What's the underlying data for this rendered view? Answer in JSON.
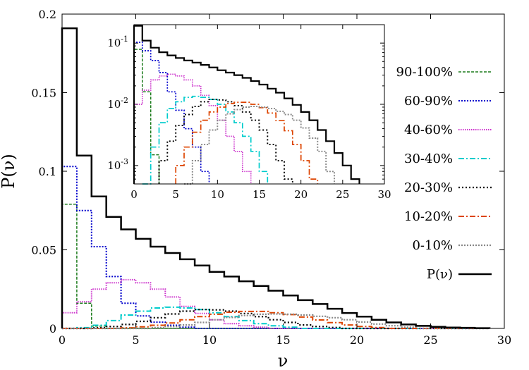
{
  "chart_data": {
    "type": "line",
    "title": "",
    "xlabel": "ν",
    "ylabel": "P(ν)",
    "xlim": [
      0,
      30
    ],
    "ylim": [
      0,
      0.2
    ],
    "x_ticks": [
      0,
      5,
      10,
      15,
      20,
      25,
      30
    ],
    "y_ticks": [
      0,
      0.05,
      0.1,
      0.15,
      0.2
    ],
    "y_tick_labels": [
      "0",
      "0.05",
      "0.1",
      "0.15",
      "0.2"
    ],
    "grid": false,
    "legend_position": "right",
    "step_style": "histogram",
    "bins": [
      0.5,
      1.5,
      2.5,
      3.5,
      4.5,
      5.5,
      6.5,
      7.5,
      8.5,
      9.5,
      10.5,
      11.5,
      12.5,
      13.5,
      14.5,
      15.5,
      16.5,
      17.5,
      18.5,
      19.5,
      20.5,
      21.5,
      22.5,
      23.5,
      24.5,
      25.5,
      26.5,
      27.5,
      28.5
    ],
    "series": [
      {
        "name": "90-100%",
        "color": "#1a7a1a",
        "dash": "4,2",
        "width": 1.5,
        "values": [
          0.079,
          0.016,
          0.0015,
          0,
          0,
          0,
          0,
          0,
          0,
          0,
          0,
          0,
          0,
          0,
          0,
          0,
          0,
          0,
          0,
          0,
          0,
          0,
          0,
          0,
          0,
          0,
          0,
          0,
          0
        ]
      },
      {
        "name": "60-90%",
        "color": "#0000cc",
        "dash": "2,2",
        "width": 2,
        "values": [
          0.103,
          0.075,
          0.052,
          0.033,
          0.016,
          0.008,
          0.004,
          0.002,
          0.0008,
          0,
          0,
          0,
          0,
          0,
          0,
          0,
          0,
          0,
          0,
          0,
          0,
          0,
          0,
          0,
          0,
          0,
          0,
          0,
          0
        ]
      },
      {
        "name": "40-60%",
        "color": "#cc33cc",
        "dash": "1.5,1.5",
        "width": 2,
        "values": [
          0.01,
          0.017,
          0.025,
          0.029,
          0.031,
          0.029,
          0.025,
          0.02,
          0.014,
          0.0095,
          0.0055,
          0.003,
          0.0017,
          0.0008,
          0,
          0,
          0,
          0,
          0,
          0,
          0,
          0,
          0,
          0,
          0,
          0,
          0,
          0,
          0
        ]
      },
      {
        "name": "30-40%",
        "color": "#00cccc",
        "dash": "8,3,2,3",
        "width": 2,
        "values": [
          0,
          0.0005,
          0.002,
          0.005,
          0.0085,
          0.011,
          0.013,
          0.0135,
          0.013,
          0.012,
          0.01,
          0.0075,
          0.005,
          0.003,
          0.0017,
          0.0008,
          0,
          0,
          0,
          0,
          0,
          0,
          0,
          0,
          0,
          0,
          0,
          0,
          0
        ]
      },
      {
        "name": "20-30%",
        "color": "#000000",
        "dash": "2,3",
        "width": 2.2,
        "values": [
          0,
          0,
          0.0004,
          0.0012,
          0.0025,
          0.0045,
          0.0068,
          0.0092,
          0.011,
          0.012,
          0.0118,
          0.011,
          0.0095,
          0.0075,
          0.0055,
          0.0038,
          0.0022,
          0.0012,
          0.0006,
          0,
          0,
          0,
          0,
          0,
          0,
          0,
          0,
          0,
          0
        ]
      },
      {
        "name": "10-20%",
        "color": "#dd4400",
        "dash": "8,3,2,3",
        "width": 2,
        "values": [
          0,
          0,
          0,
          0,
          0.0004,
          0.001,
          0.002,
          0.0035,
          0.0055,
          0.0075,
          0.009,
          0.0103,
          0.0108,
          0.0108,
          0.01,
          0.0088,
          0.0072,
          0.0054,
          0.0037,
          0.0022,
          0.0012,
          0.0006,
          0,
          0,
          0,
          0,
          0,
          0,
          0
        ]
      },
      {
        "name": "0-10%",
        "color": "#888888",
        "dash": "2,2",
        "width": 2.2,
        "values": [
          0,
          0,
          0,
          0,
          0,
          0,
          0.0005,
          0.0012,
          0.0022,
          0.0038,
          0.0055,
          0.007,
          0.0082,
          0.009,
          0.0092,
          0.009,
          0.0085,
          0.0077,
          0.0068,
          0.0055,
          0.0041,
          0.0028,
          0.0017,
          0.0008,
          0,
          0,
          0,
          0,
          0
        ]
      },
      {
        "name": "P(ν)",
        "color": "#000000",
        "dash": "",
        "width": 2.5,
        "values": [
          0.191,
          0.11,
          0.084,
          0.071,
          0.063,
          0.057,
          0.052,
          0.048,
          0.044,
          0.04,
          0.036,
          0.033,
          0.03,
          0.027,
          0.024,
          0.021,
          0.018,
          0.0155,
          0.0125,
          0.0098,
          0.0075,
          0.0055,
          0.0038,
          0.0025,
          0.0016,
          0.001,
          0.0006,
          0.0004,
          0.0002
        ]
      }
    ],
    "inset": {
      "type": "line",
      "yscale": "log",
      "xlim": [
        0,
        30
      ],
      "ylim": [
        0.0005,
        0.2
      ],
      "x_ticks": [
        0,
        5,
        10,
        15,
        20,
        25,
        30
      ],
      "y_ticks": [
        0.001,
        0.01,
        0.1
      ],
      "y_tick_labels": [
        "10-3",
        "10-2",
        "10-1"
      ]
    }
  }
}
